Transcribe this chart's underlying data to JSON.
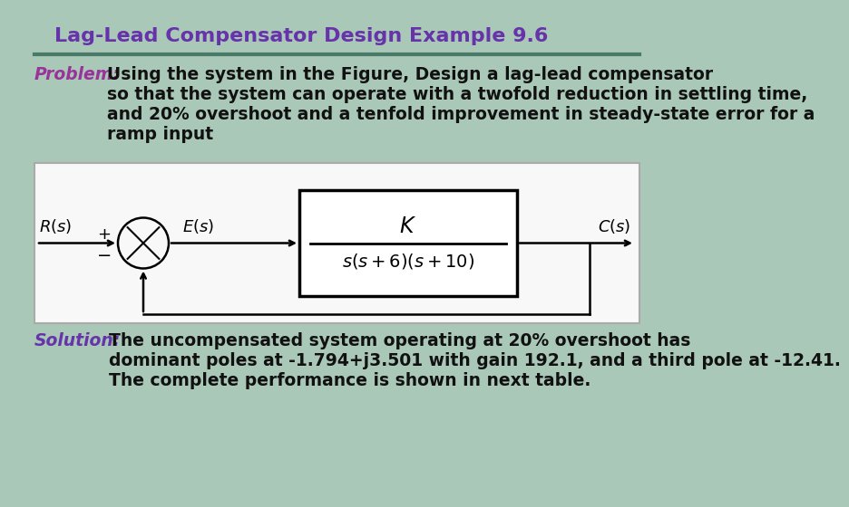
{
  "title": "Lag-Lead Compensator Design Example 9.6",
  "title_color": "#6633aa",
  "title_fontsize": 16,
  "bg_color": "#aac8b8",
  "divider_color": "#4a7a6a",
  "problem_label": "Problem:",
  "problem_label_color": "#993399",
  "problem_body": "Using the system in the Figure, Design a lag-lead compensator\nso that the system can operate with a twofold reduction in settling time,\nand 20% overshoot and a tenfold improvement in steady-state error for a\nramp input",
  "problem_text_color": "#111111",
  "solution_label": "Solution:",
  "solution_label_color": "#6633aa",
  "solution_body": "The uncompensated system operating at 20% overshoot has\ndominant poles at -1.794+j3.501 with gain 192.1, and a third pole at -12.41.\nThe complete performance is shown in next table.",
  "solution_text_color": "#111111",
  "text_fontsize": 13.5,
  "diagram_bg": "#f8f8f8",
  "diagram_border": "#aaaaaa"
}
